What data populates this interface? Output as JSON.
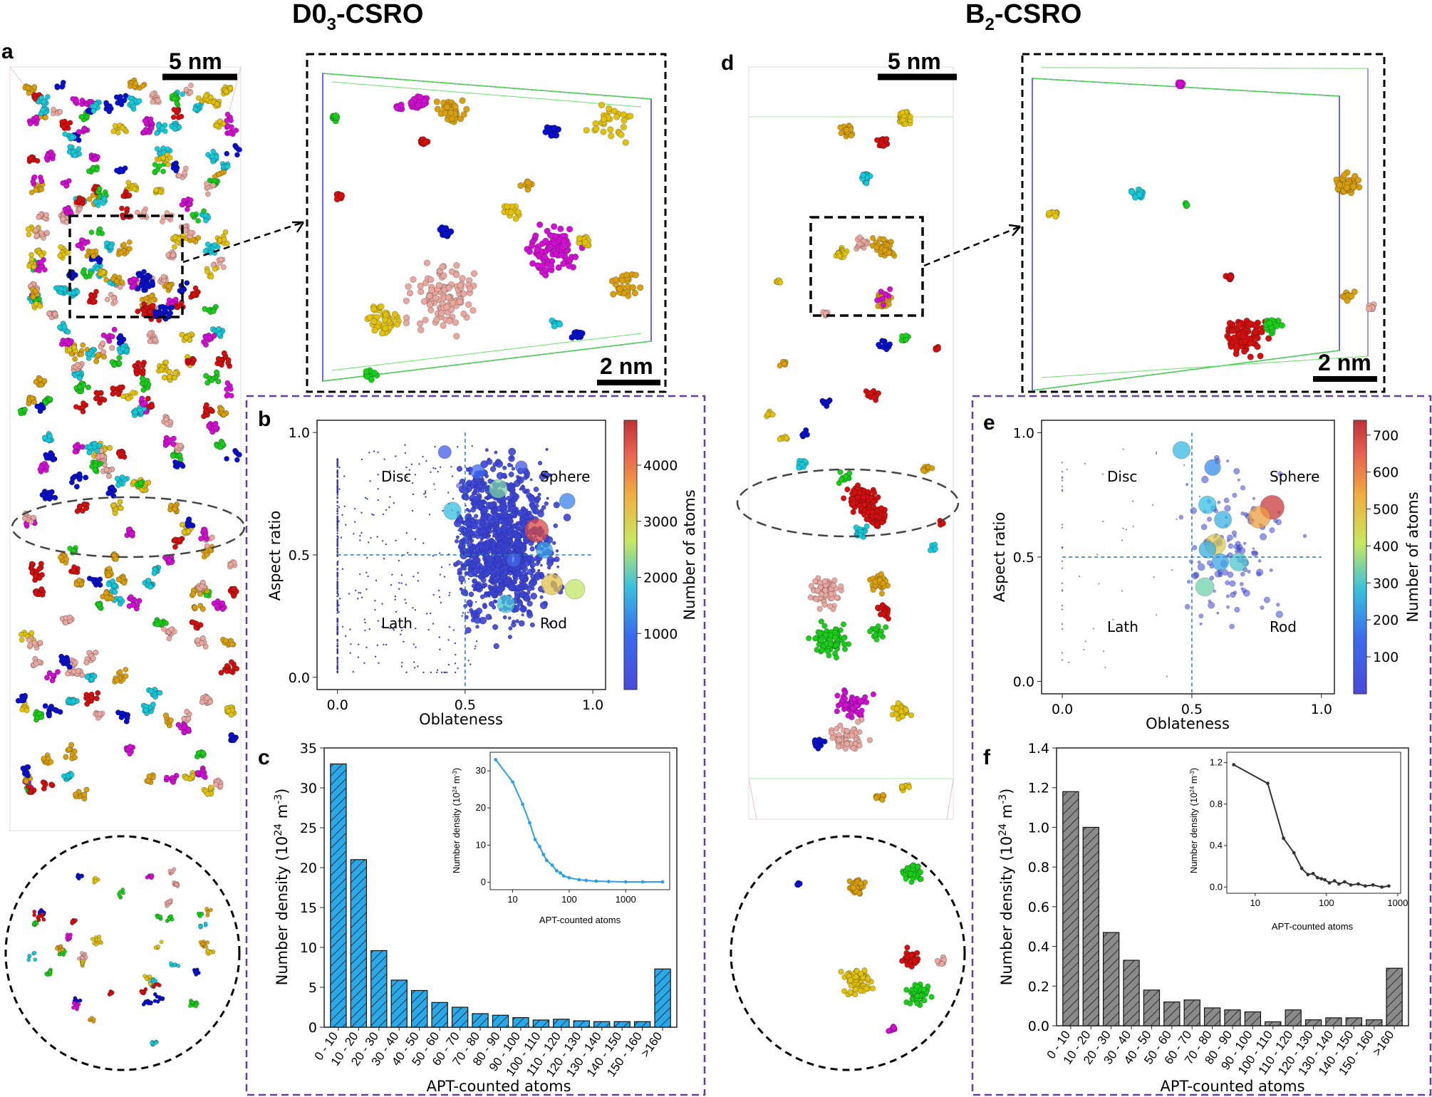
{
  "figure": {
    "left_title": {
      "main": "D0",
      "sub": "3",
      "suffix": "-CSRO"
    },
    "right_title": {
      "main": "B",
      "sub": "2",
      "suffix": "-CSRO"
    },
    "panel_labels": {
      "a": "a",
      "b": "b",
      "c": "c",
      "d": "d",
      "e": "e",
      "f": "f"
    },
    "scale_bars": {
      "a": "5 nm",
      "a_zoom": "2 nm",
      "d": "5 nm",
      "d_zoom": "2 nm"
    }
  },
  "colors": {
    "dashed_box": "#6a3d9a",
    "cluster_palette": [
      "#d11010",
      "#0a10c8",
      "#e0c010",
      "#1ccc1c",
      "#d010d0",
      "#18c8d8",
      "#d8a010",
      "#e8a8a0"
    ],
    "bar_left": "#2aa8e8",
    "bar_right": "#8a8a8a",
    "inset_line_left": "#2aa0e8",
    "inset_line_right": "#333333"
  },
  "chart_data": [
    {
      "id": "b",
      "type": "scatter",
      "title": "",
      "xlabel": "Oblateness",
      "ylabel": "Aspect ratio",
      "xlim": [
        -0.08,
        1.05
      ],
      "ylim": [
        -0.05,
        1.05
      ],
      "xticks": [
        "0.0",
        "0.5",
        "1.0"
      ],
      "xtick_values": [
        0,
        0.5,
        1
      ],
      "yticks": [
        "0.0",
        "0.5",
        "1.0"
      ],
      "ytick_values": [
        0,
        0.5,
        1
      ],
      "regions": [
        "Disc",
        "Sphere",
        "Lath",
        "Rod"
      ],
      "thresholds": {
        "x": 0.5,
        "y": 0.5
      },
      "colorbar": {
        "label": "Number of atoms",
        "ticks": [
          "1000",
          "2000",
          "3000",
          "4000"
        ],
        "tick_values": [
          1000,
          2000,
          3000,
          4000
        ],
        "range": [
          0,
          4800
        ]
      },
      "highlight_points": [
        {
          "x": 0.42,
          "y": 0.92,
          "atoms": 600
        },
        {
          "x": 0.72,
          "y": 0.86,
          "atoms": 400
        },
        {
          "x": 0.63,
          "y": 0.77,
          "atoms": 2200
        },
        {
          "x": 0.45,
          "y": 0.68,
          "atoms": 1800
        },
        {
          "x": 0.81,
          "y": 0.52,
          "atoms": 1500
        },
        {
          "x": 0.69,
          "y": 0.48,
          "atoms": 800
        },
        {
          "x": 0.78,
          "y": 0.6,
          "atoms": 4500
        },
        {
          "x": 0.84,
          "y": 0.38,
          "atoms": 3200
        },
        {
          "x": 0.93,
          "y": 0.36,
          "atoms": 2600
        },
        {
          "x": 0.66,
          "y": 0.3,
          "atoms": 1900
        },
        {
          "x": 0.9,
          "y": 0.72,
          "atoms": 1200
        },
        {
          "x": 0.55,
          "y": 0.84,
          "atoms": 900
        }
      ]
    },
    {
      "id": "c",
      "type": "bar",
      "title": "",
      "xlabel": "APT-counted atoms",
      "ylabel": "Number density (10^24 m^-3)",
      "ylim": [
        0,
        35
      ],
      "yticks": [
        "0",
        "5",
        "10",
        "15",
        "20",
        "25",
        "30",
        "35"
      ],
      "ytick_values": [
        0,
        5,
        10,
        15,
        20,
        25,
        30,
        35
      ],
      "categories": [
        "0 - 10",
        "10 - 20",
        "20 - 30",
        "30 - 40",
        "40 - 50",
        "50 - 60",
        "60 - 70",
        "70 - 80",
        "80 - 90",
        "90 - 100",
        "100 - 110",
        "110 - 120",
        "120 - 130",
        "130 - 140",
        "140 - 150",
        "150 - 160",
        ">160"
      ],
      "values": [
        33.0,
        21.0,
        9.6,
        5.9,
        4.6,
        3.1,
        2.5,
        1.7,
        1.5,
        1.2,
        0.9,
        1.0,
        0.8,
        0.7,
        0.7,
        0.7,
        7.3
      ],
      "inset": {
        "type": "line",
        "xlabel": "APT-counted atoms",
        "ylabel": "Number density (10^24 m^-3)",
        "xscale": "log",
        "xlim": [
          4,
          6000
        ],
        "ylim": [
          -2,
          35
        ],
        "xticks": [
          "10",
          "100",
          "1000"
        ],
        "xtick_values": [
          10,
          100,
          1000
        ],
        "yticks": [
          "0",
          "10",
          "20",
          "30"
        ],
        "ytick_values": [
          0,
          10,
          20,
          30
        ],
        "x": [
          5,
          10,
          15,
          20,
          25,
          30,
          35,
          40,
          50,
          60,
          70,
          80,
          100,
          150,
          200,
          300,
          500,
          1000,
          2000,
          4500
        ],
        "y": [
          33.0,
          27.0,
          21.0,
          16.0,
          11.5,
          9.6,
          7.5,
          5.9,
          4.6,
          3.1,
          2.5,
          1.7,
          1.2,
          0.7,
          0.5,
          0.3,
          0.2,
          0.1,
          0.1,
          0.1
        ]
      }
    },
    {
      "id": "e",
      "type": "scatter",
      "title": "",
      "xlabel": "Oblateness",
      "ylabel": "Aspect ratio",
      "xlim": [
        -0.08,
        1.05
      ],
      "ylim": [
        -0.05,
        1.05
      ],
      "xticks": [
        "0.0",
        "0.5",
        "1.0"
      ],
      "xtick_values": [
        0,
        0.5,
        1
      ],
      "yticks": [
        "0.0",
        "0.5",
        "1.0"
      ],
      "ytick_values": [
        0,
        0.5,
        1
      ],
      "regions": [
        "Disc",
        "Sphere",
        "Lath",
        "Rod"
      ],
      "thresholds": {
        "x": 0.5,
        "y": 0.5
      },
      "colorbar": {
        "label": "Number of atoms",
        "ticks": [
          "100",
          "200",
          "300",
          "400",
          "500",
          "600",
          "700"
        ],
        "tick_values": [
          100,
          200,
          300,
          400,
          500,
          600,
          700
        ],
        "range": [
          0,
          740
        ]
      },
      "highlight_points": [
        {
          "x": 0.81,
          "y": 0.7,
          "atoms": 720
        },
        {
          "x": 0.76,
          "y": 0.66,
          "atoms": 560
        },
        {
          "x": 0.59,
          "y": 0.55,
          "atoms": 470
        },
        {
          "x": 0.46,
          "y": 0.93,
          "atoms": 270
        },
        {
          "x": 0.55,
          "y": 0.38,
          "atoms": 330
        },
        {
          "x": 0.68,
          "y": 0.48,
          "atoms": 300
        },
        {
          "x": 0.56,
          "y": 0.71,
          "atoms": 280
        },
        {
          "x": 0.62,
          "y": 0.65,
          "atoms": 260
        },
        {
          "x": 0.56,
          "y": 0.53,
          "atoms": 250
        },
        {
          "x": 0.61,
          "y": 0.48,
          "atoms": 240
        },
        {
          "x": 0.58,
          "y": 0.86,
          "atoms": 200
        }
      ]
    },
    {
      "id": "f",
      "type": "bar",
      "title": "",
      "xlabel": "APT-counted atoms",
      "ylabel": "Number density (10^24 m^-3)",
      "ylim": [
        0,
        1.4
      ],
      "yticks": [
        "0.0",
        "0.2",
        "0.4",
        "0.6",
        "0.8",
        "1.0",
        "1.2",
        "1.4"
      ],
      "ytick_values": [
        0,
        0.2,
        0.4,
        0.6,
        0.8,
        1.0,
        1.2,
        1.4
      ],
      "categories": [
        "0 - 10",
        "10 - 20",
        "20 - 30",
        "30 - 40",
        "40 - 50",
        "50 - 60",
        "60 - 70",
        "70 - 80",
        "80 - 90",
        "90 - 100",
        "100 - 110",
        "110 - 120",
        "120 - 130",
        "130 - 140",
        "140 - 150",
        "150 - 160",
        ">160"
      ],
      "values": [
        1.18,
        1.0,
        0.47,
        0.33,
        0.18,
        0.12,
        0.13,
        0.09,
        0.08,
        0.07,
        0.02,
        0.08,
        0.03,
        0.04,
        0.04,
        0.03,
        0.29
      ],
      "inset": {
        "type": "line",
        "xlabel": "APT-counted atoms",
        "ylabel": "Number density (10^24 m^-3)",
        "xscale": "log",
        "xlim": [
          4,
          1100
        ],
        "ylim": [
          -0.06,
          1.3
        ],
        "xticks": [
          "10",
          "100",
          "1000"
        ],
        "xtick_values": [
          10,
          100,
          1000
        ],
        "yticks": [
          "0.0",
          "0.4",
          "0.8",
          "1.2"
        ],
        "ytick_values": [
          0,
          0.4,
          0.8,
          1.2
        ],
        "x": [
          5,
          15,
          25,
          35,
          45,
          55,
          65,
          75,
          85,
          95,
          110,
          130,
          150,
          180,
          220,
          280,
          350,
          450,
          600,
          750
        ],
        "y": [
          1.18,
          1.0,
          0.47,
          0.33,
          0.18,
          0.12,
          0.13,
          0.09,
          0.08,
          0.07,
          0.04,
          0.06,
          0.03,
          0.05,
          0.02,
          0.03,
          0.01,
          0.02,
          0.0,
          0.01
        ]
      }
    }
  ]
}
